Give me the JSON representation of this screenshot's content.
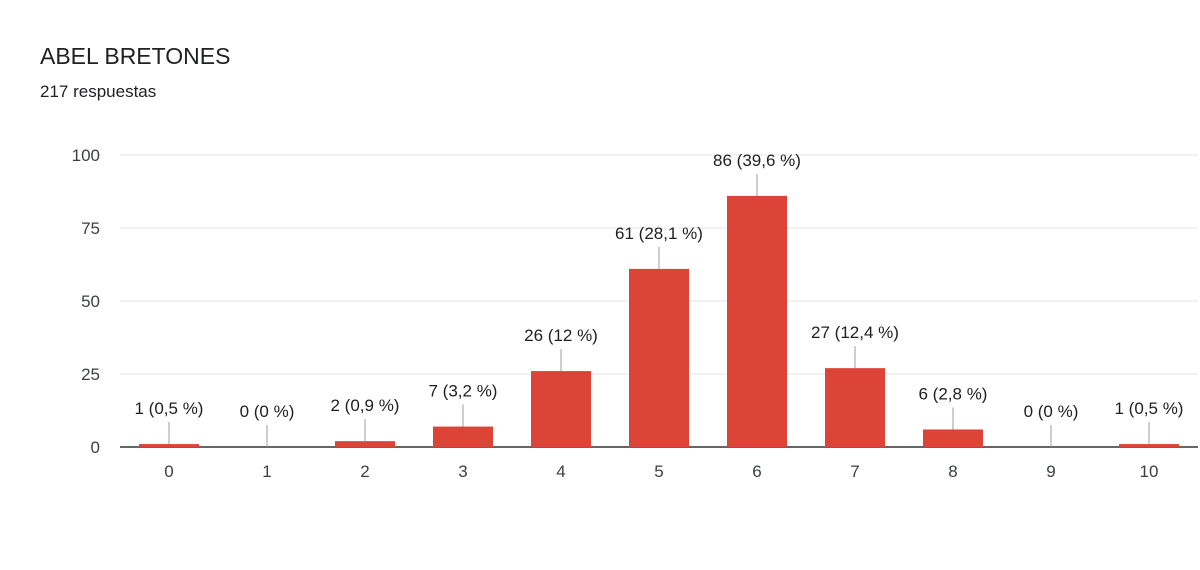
{
  "header": {
    "title": "ABEL BRETONES",
    "subtitle": "217 respuestas"
  },
  "chart_data": {
    "type": "bar",
    "categories": [
      "0",
      "1",
      "2",
      "3",
      "4",
      "5",
      "6",
      "7",
      "8",
      "9",
      "10"
    ],
    "values": [
      1,
      0,
      2,
      7,
      26,
      61,
      86,
      27,
      6,
      0,
      1
    ],
    "data_labels": [
      "1 (0,5 %)",
      "0 (0 %)",
      "2 (0,9 %)",
      "7 (3,2 %)",
      "26 (12 %)",
      "61 (28,1 %)",
      "86 (39,6 %)",
      "27 (12,4 %)",
      "6 (2,8 %)",
      "0 (0 %)",
      "1 (0,5 %)"
    ],
    "yticks": [
      "0",
      "25",
      "50",
      "75",
      "100"
    ],
    "ylim": [
      0,
      100
    ],
    "grid": true,
    "bar_color": "#db4437"
  }
}
